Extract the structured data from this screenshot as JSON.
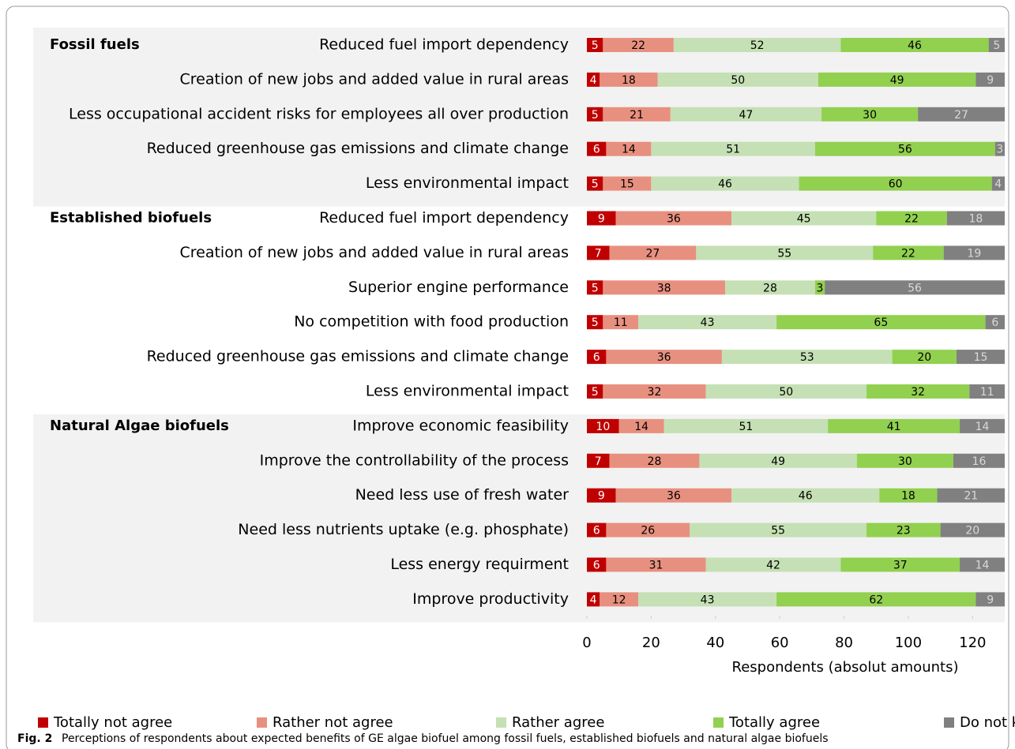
{
  "chart_data": {
    "type": "stacked-bar-horizontal",
    "xlabel": "Respondents (absolut amounts)",
    "caption_label": "Fig. 2",
    "caption": "Perceptions of respondents about expected benefits of GE algae biofuel among fossil fuels, established biofuels and natural algae biofuels",
    "groups": [
      {
        "name": "Fossil fuels",
        "categories": [
          "Reduced fuel import dependency",
          "Creation of new jobs and added value in rural areas",
          "Less occupational accident risks for employees all over production",
          "Reduced greenhouse gas emissions and climate change",
          "Less environmental impact"
        ]
      },
      {
        "name": "Established biofuels",
        "categories": [
          "Reduced fuel import dependency",
          "Creation of new jobs and added value in rural areas",
          "Superior engine performance",
          "No competition with food production",
          "Reduced greenhouse gas emissions and climate change",
          "Less environmental impact"
        ]
      },
      {
        "name": "Natural Algae biofuels",
        "categories": [
          "Improve economic feasibility",
          "Improve the controllability of the process",
          "Need less use of fresh water",
          "Need less nutrients uptake (e.g. phosphate)",
          "Less energy requirment",
          "Improve productivity"
        ]
      }
    ],
    "series": [
      {
        "name": "Totally not agree",
        "color": "#c00000",
        "label_color": "#ffffff",
        "values": [
          5,
          4,
          5,
          6,
          5,
          9,
          7,
          5,
          5,
          6,
          5,
          10,
          7,
          9,
          6,
          6,
          4
        ]
      },
      {
        "name": "Rather not agree",
        "color": "#e8907f",
        "label_color": "#000000",
        "values": [
          22,
          18,
          21,
          14,
          15,
          36,
          27,
          38,
          11,
          36,
          32,
          14,
          28,
          36,
          26,
          31,
          12
        ]
      },
      {
        "name": "Rather agree",
        "color": "#c5e0b4",
        "label_color": "#000000",
        "values": [
          52,
          50,
          47,
          51,
          46,
          45,
          55,
          28,
          43,
          53,
          50,
          51,
          49,
          46,
          55,
          42,
          43
        ]
      },
      {
        "name": "Totally agree",
        "color": "#92d050",
        "label_color": "#000000",
        "values": [
          46,
          49,
          30,
          56,
          60,
          22,
          22,
          3,
          65,
          20,
          32,
          41,
          30,
          18,
          23,
          37,
          62
        ]
      },
      {
        "name": "Do not know",
        "color": "#808080",
        "label_color": "#d9d9d9",
        "values": [
          5,
          9,
          27,
          3,
          4,
          18,
          19,
          56,
          6,
          15,
          11,
          14,
          16,
          21,
          20,
          14,
          9
        ]
      }
    ],
    "xlim": [
      0,
      130
    ],
    "xticks": [
      0,
      20,
      40,
      60,
      80,
      100,
      120
    ]
  }
}
